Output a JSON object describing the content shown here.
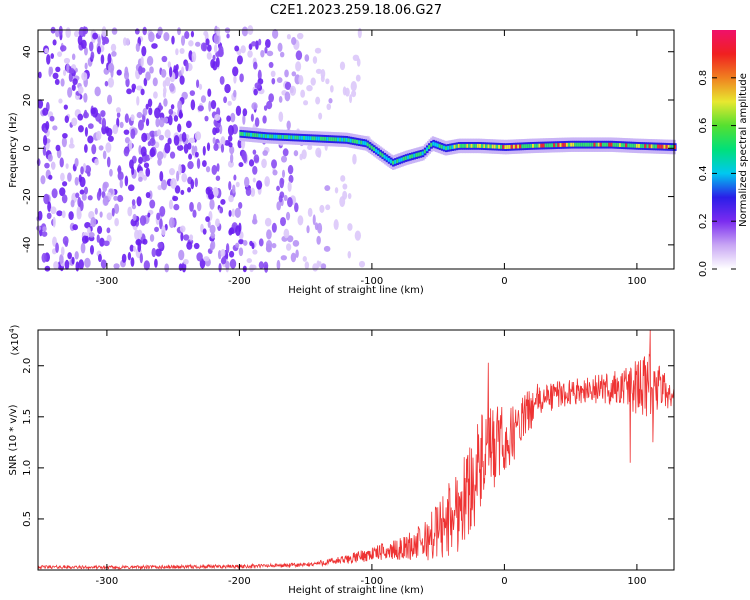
{
  "title": "C2E1.2023.259.18.06.G27",
  "chart_data": [
    {
      "type": "heatmap",
      "title": "C2E1.2023.259.18.06.G27",
      "xlabel": "Height of straight line (km)",
      "ylabel": "Frequency (Hz)",
      "xlim": [
        -352,
        128
      ],
      "ylim": [
        -50,
        49
      ],
      "xticks": [
        -300,
        -200,
        -100,
        0,
        100
      ],
      "yticks": [
        -40,
        -20,
        0,
        20,
        40
      ],
      "grid": false,
      "colorbar": {
        "label": "Normalized spectral amplitude",
        "range": [
          0,
          1
        ],
        "ticks": [
          0.0,
          0.2,
          0.4,
          0.6,
          0.8
        ],
        "colors": [
          "#ffffff",
          "#c8a6f4",
          "#7b2cf0",
          "#2a1ee8",
          "#00c8f0",
          "#00e07a",
          "#55e030",
          "#e8e830",
          "#f08020",
          "#f02020",
          "#f0106a"
        ]
      },
      "features": {
        "noise_region_x": [
          -352,
          -140
        ],
        "signal_ridge": [
          [
            -200,
            6
          ],
          [
            -180,
            5
          ],
          [
            -160,
            4.5
          ],
          [
            -140,
            4
          ],
          [
            -120,
            3.5
          ],
          [
            -105,
            2
          ],
          [
            -95,
            -2
          ],
          [
            -85,
            -6
          ],
          [
            -75,
            -4
          ],
          [
            -62,
            -2
          ],
          [
            -55,
            2
          ],
          [
            -45,
            0
          ],
          [
            -35,
            1
          ],
          [
            -20,
            1
          ],
          [
            0,
            0.5
          ],
          [
            20,
            1
          ],
          [
            50,
            1.5
          ],
          [
            80,
            1.5
          ],
          [
            100,
            1
          ],
          [
            128,
            0.5
          ]
        ]
      }
    },
    {
      "type": "line",
      "xlabel": "Height of straight line (km)",
      "ylabel": "SNR (10 * v/v)",
      "yscale_label": "(x10",
      "yscale_exp": "4",
      "yscale_close": ")",
      "xlim": [
        -352,
        128
      ],
      "ylim": [
        0,
        23500
      ],
      "xticks": [
        -300,
        -200,
        -100,
        0,
        100
      ],
      "yticks": [
        0.5,
        1.0,
        1.5,
        2.0
      ],
      "ytick_labels": [
        "0.5",
        "1.0",
        "1.5",
        "2.0"
      ],
      "grid": false,
      "series": [
        {
          "color": "#ee3333",
          "trend": [
            [
              -352,
              300
            ],
            [
              -300,
              250
            ],
            [
              -250,
              300
            ],
            [
              -200,
              350
            ],
            [
              -150,
              500
            ],
            [
              -120,
              1000
            ],
            [
              -100,
              1600
            ],
            [
              -80,
              2000
            ],
            [
              -60,
              2800
            ],
            [
              -45,
              4500
            ],
            [
              -35,
              6000
            ],
            [
              -25,
              8500
            ],
            [
              -15,
              11000
            ],
            [
              -5,
              12000
            ],
            [
              5,
              13000
            ],
            [
              15,
              15000
            ],
            [
              25,
              16500
            ],
            [
              40,
              17200
            ],
            [
              60,
              17600
            ],
            [
              80,
              17800
            ],
            [
              100,
              17900
            ],
            [
              110,
              17700
            ],
            [
              128,
              17300
            ]
          ],
          "noise": [
            [
              -352,
              150
            ],
            [
              -150,
              200
            ],
            [
              -120,
              450
            ],
            [
              -100,
              700
            ],
            [
              -80,
              1000
            ],
            [
              -60,
              2000
            ],
            [
              -40,
              4000
            ],
            [
              -20,
              5000
            ],
            [
              -5,
              4000
            ],
            [
              10,
              2500
            ],
            [
              30,
              1500
            ],
            [
              60,
              1200
            ],
            [
              90,
              2000
            ],
            [
              110,
              3500
            ],
            [
              128,
              1200
            ]
          ],
          "spikes": [
            [
              -12,
              20300
            ],
            [
              -28,
              11000
            ],
            [
              -5,
              16000
            ],
            [
              110,
              23500
            ],
            [
              105,
              19000
            ],
            [
              95,
              10500
            ],
            [
              112,
              12500
            ]
          ]
        }
      ]
    }
  ]
}
